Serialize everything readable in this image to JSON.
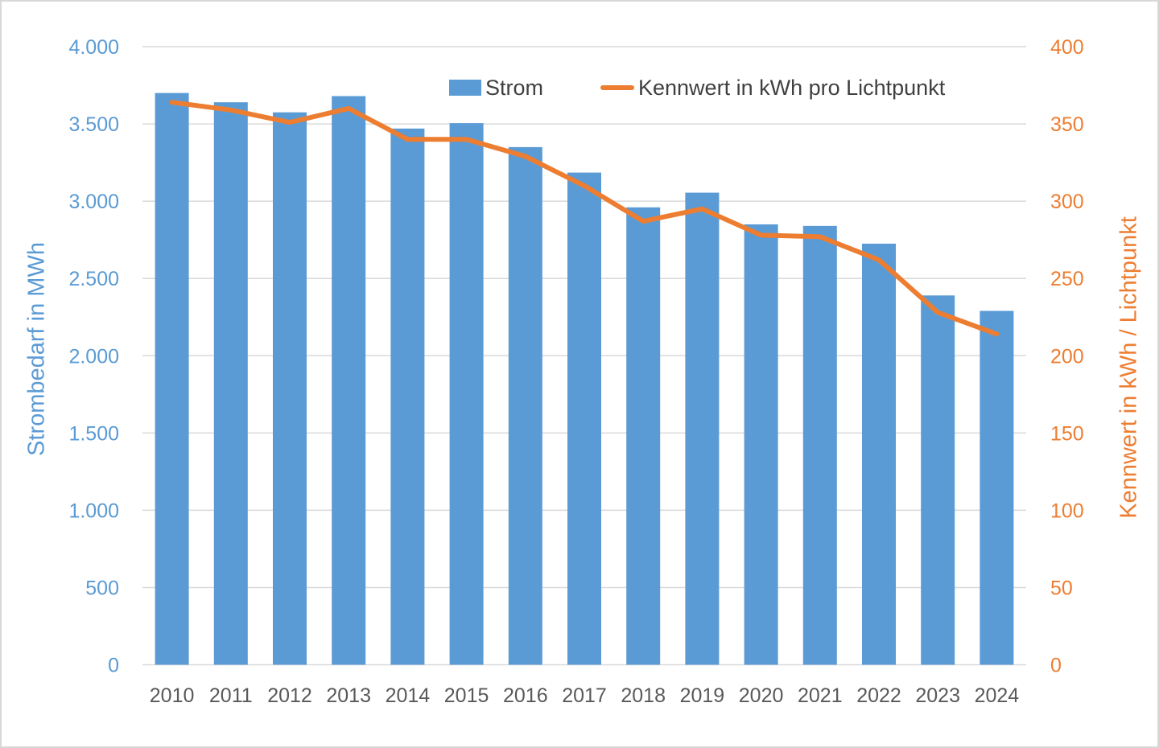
{
  "chart_data": {
    "type": "bar",
    "subtype": "bar-line-combo",
    "categories": [
      "2010",
      "2011",
      "2012",
      "2013",
      "2014",
      "2015",
      "2016",
      "2017",
      "2018",
      "2019",
      "2020",
      "2021",
      "2022",
      "2023",
      "2024"
    ],
    "series": [
      {
        "name": "Strom",
        "type": "bar",
        "axis": "left",
        "color": "#5B9BD5",
        "values": [
          3700,
          3640,
          3575,
          3680,
          3470,
          3505,
          3350,
          3185,
          2960,
          3055,
          2850,
          2840,
          2725,
          2390,
          2290
        ]
      },
      {
        "name": "Kennwert in kWh pro Lichtpunkt",
        "type": "line",
        "axis": "right",
        "color": "#ED7D31",
        "values": [
          364,
          359,
          351,
          360,
          340,
          340,
          329,
          310,
          287,
          295,
          278,
          277,
          262,
          228,
          214
        ]
      }
    ],
    "left_axis": {
      "title": "Strombedarf in MWh",
      "min": 0,
      "max": 4000,
      "step": 500,
      "tick_labels": [
        "0",
        "500",
        "1.000",
        "1.500",
        "2.000",
        "2.500",
        "3.000",
        "3.500",
        "4.000"
      ],
      "color": "#5B9BD5"
    },
    "right_axis": {
      "title": "Kennwert in kWh / Lichtpunkt",
      "min": 0,
      "max": 400,
      "step": 50,
      "tick_labels": [
        "0",
        "50",
        "100",
        "150",
        "200",
        "250",
        "300",
        "350",
        "400"
      ],
      "color": "#ED7D31"
    },
    "x_axis": {
      "label_color": "#595959"
    },
    "legend": {
      "position": "top",
      "entries": [
        {
          "label": "Strom",
          "marker": "swatch",
          "color": "#5B9BD5"
        },
        {
          "label": "Kennwert in kWh pro Lichtpunkt",
          "marker": "line",
          "color": "#ED7D31"
        }
      ]
    },
    "grid": true,
    "gridline_color": "#D9D9D9",
    "title": "",
    "xlabel": "",
    "ylim_left": [
      0,
      4000
    ],
    "ylim_right": [
      0,
      400
    ]
  }
}
